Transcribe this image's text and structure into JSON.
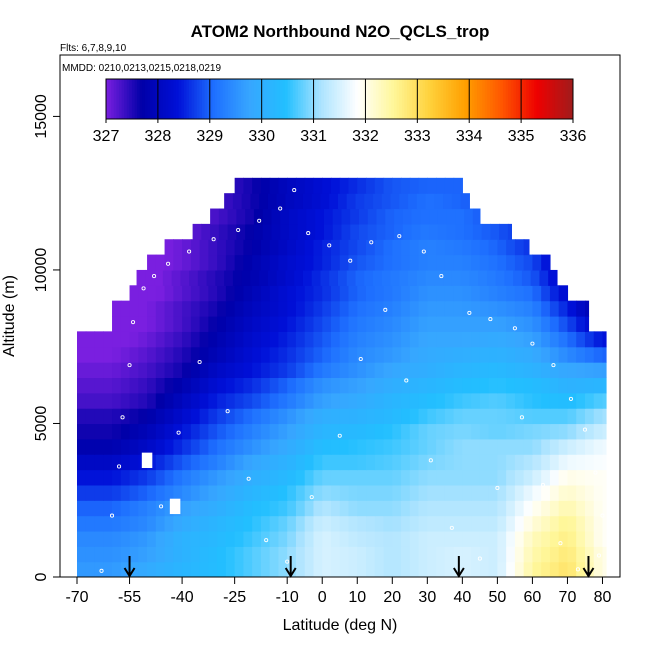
{
  "chart_data": {
    "type": "heatmap",
    "title": "ATOM2 Northbound N2O_QCLS_trop",
    "flights_label": "Flts: 6,7,8,9,10",
    "dates_label": "MMDD: 0210,0213,0215,0218,0219",
    "xlabel": "Latitude (deg N)",
    "ylabel": "Altitude (m)",
    "xlim": [
      -70,
      85
    ],
    "ylim": [
      0,
      17000
    ],
    "x_ticks": [
      -70,
      -55,
      -40,
      -25,
      -10,
      0,
      10,
      20,
      30,
      40,
      50,
      60,
      70,
      80
    ],
    "y_ticks": [
      0,
      5000,
      10000,
      15000
    ],
    "colorbar": {
      "min": 327,
      "max": 336,
      "ticks": [
        "327",
        "328",
        "329",
        "330",
        "331",
        "332",
        "333",
        "334",
        "335",
        "336"
      ],
      "colors": [
        "#7a1fe0",
        "#0000a8",
        "#0010d8",
        "#1e6fff",
        "#37a6ff",
        "#22bfff",
        "#aee4ff",
        "#ffffff",
        "#fff79a",
        "#ffd23c",
        "#ff9f00",
        "#ff5800",
        "#ee0000",
        "#a01c1c"
      ]
    },
    "arrows_lat": [
      -55,
      -9,
      39,
      76
    ],
    "field_altitudes": [
      0,
      500,
      1000,
      1500,
      2000,
      2500,
      3000,
      3500,
      4000,
      4500,
      5000,
      5500,
      6000,
      6500,
      7000,
      7500,
      8000,
      8500,
      9000,
      9500,
      10000,
      10500,
      11000,
      11500,
      12000,
      12500
    ],
    "field_latitudes": [
      -60,
      -50,
      -40,
      -30,
      -20,
      -10,
      0,
      10,
      20,
      30,
      40,
      50,
      60,
      70,
      80
    ],
    "field_values": [
      [
        329.6,
        329.9,
        330.2,
        330.4,
        330.7,
        331.0,
        331.5,
        331.4,
        331.2,
        331.4,
        331.5,
        331.4,
        332.5,
        332.9,
        332.0
      ],
      [
        329.5,
        329.7,
        330.1,
        330.4,
        330.7,
        331.0,
        331.5,
        331.4,
        331.2,
        331.4,
        331.5,
        331.4,
        332.4,
        332.8,
        332.0
      ],
      [
        329.4,
        329.6,
        330.1,
        330.3,
        330.6,
        330.9,
        331.5,
        331.3,
        331.2,
        331.4,
        331.4,
        331.4,
        332.3,
        332.7,
        331.9
      ],
      [
        329.2,
        329.4,
        329.9,
        330.2,
        330.5,
        330.8,
        331.4,
        331.2,
        331.1,
        331.3,
        331.3,
        331.3,
        332.1,
        332.6,
        331.9
      ],
      [
        329.0,
        329.3,
        329.7,
        330.0,
        330.4,
        330.6,
        331.2,
        331.0,
        331.0,
        331.2,
        331.2,
        331.2,
        331.9,
        332.4,
        331.9
      ],
      [
        328.7,
        329.0,
        329.4,
        329.8,
        330.2,
        330.5,
        331.0,
        330.9,
        330.9,
        331.1,
        331.1,
        331.1,
        331.7,
        332.2,
        331.9
      ],
      [
        328.4,
        328.7,
        329.2,
        329.6,
        330.0,
        330.3,
        330.8,
        330.8,
        330.8,
        331.0,
        331.0,
        331.0,
        331.4,
        332.0,
        331.9
      ],
      [
        328.1,
        328.4,
        328.9,
        329.3,
        329.8,
        330.1,
        330.6,
        330.6,
        330.7,
        330.9,
        331.0,
        331.0,
        331.2,
        331.7,
        331.8
      ],
      [
        327.8,
        328.1,
        328.6,
        329.1,
        329.5,
        329.9,
        330.4,
        330.5,
        330.6,
        330.8,
        331.0,
        331.0,
        331.0,
        331.4,
        331.7
      ],
      [
        327.6,
        327.9,
        328.4,
        328.9,
        329.3,
        329.7,
        330.2,
        330.3,
        330.5,
        330.8,
        330.9,
        330.8,
        330.9,
        331.0,
        331.4
      ],
      [
        327.5,
        327.7,
        328.2,
        328.7,
        329.1,
        329.5,
        330.0,
        330.1,
        330.3,
        330.6,
        330.8,
        330.8,
        330.7,
        330.7,
        331.1
      ],
      [
        327.3,
        327.5,
        328.0,
        328.5,
        328.8,
        329.2,
        329.7,
        329.9,
        330.2,
        330.4,
        330.6,
        330.7,
        330.5,
        330.4,
        330.7
      ],
      [
        327.2,
        327.4,
        327.8,
        328.3,
        328.6,
        329.0,
        329.5,
        329.7,
        330.0,
        330.2,
        330.4,
        330.5,
        330.4,
        330.1,
        330.2
      ],
      [
        327.1,
        327.3,
        327.6,
        328.1,
        328.4,
        328.7,
        329.2,
        329.5,
        329.8,
        330.0,
        330.2,
        330.3,
        330.1,
        329.8,
        329.7
      ],
      [
        327.0,
        327.2,
        327.5,
        327.9,
        328.3,
        328.6,
        329.0,
        329.4,
        329.6,
        329.9,
        330.0,
        330.1,
        329.9,
        329.4,
        329.0
      ],
      [
        326.9,
        327.1,
        327.4,
        327.8,
        328.2,
        328.5,
        328.9,
        329.3,
        329.5,
        329.8,
        329.8,
        329.9,
        329.7,
        329.1,
        328.4
      ],
      [
        326.9,
        327.0,
        327.3,
        327.7,
        328.1,
        328.4,
        328.8,
        329.2,
        329.4,
        329.7,
        329.7,
        329.7,
        329.5,
        328.8,
        327.9
      ],
      [
        326.8,
        327.0,
        327.3,
        327.6,
        328.0,
        328.3,
        328.7,
        329.1,
        329.3,
        329.6,
        329.6,
        329.5,
        329.3,
        328.5,
        327.5
      ],
      [
        326.8,
        326.9,
        327.2,
        327.5,
        327.9,
        328.3,
        328.6,
        329.0,
        329.2,
        329.5,
        329.5,
        329.3,
        329.1,
        328.2,
        327.2
      ],
      [
        326.8,
        326.9,
        327.2,
        327.5,
        327.8,
        328.2,
        328.6,
        329.0,
        329.2,
        329.4,
        329.4,
        329.2,
        328.9,
        328.0,
        327.0
      ],
      [
        326.8,
        326.9,
        327.1,
        327.4,
        327.8,
        328.2,
        328.5,
        328.9,
        329.1,
        329.3,
        329.3,
        329.1,
        328.8,
        327.8,
        327.0
      ],
      [
        326.8,
        326.9,
        327.1,
        327.4,
        327.7,
        328.1,
        328.5,
        328.8,
        329.1,
        329.3,
        329.2,
        329.0,
        328.6,
        327.7,
        327.0
      ],
      [
        326.8,
        326.8,
        327.1,
        327.4,
        327.7,
        328.1,
        328.4,
        328.8,
        329.0,
        329.2,
        329.1,
        328.9,
        328.5,
        327.6,
        327.0
      ],
      [
        326.8,
        326.8,
        327.1,
        327.3,
        327.6,
        328.1,
        328.4,
        328.7,
        329.0,
        329.1,
        329.1,
        328.8,
        328.4,
        327.5,
        327.0
      ],
      [
        326.8,
        326.8,
        327.0,
        327.3,
        327.6,
        328.0,
        328.3,
        328.7,
        328.9,
        329.1,
        329.0,
        328.7,
        328.3,
        327.4,
        327.0
      ],
      [
        326.8,
        326.8,
        327.0,
        327.3,
        327.6,
        328.0,
        328.3,
        328.6,
        328.9,
        329.0,
        329.0,
        328.6,
        328.2,
        327.3,
        327.0
      ]
    ],
    "coverage_by_altitude": [
      [
        -70,
        81
      ],
      [
        -70,
        81
      ],
      [
        -70,
        81
      ],
      [
        -70,
        81
      ],
      [
        -70,
        81
      ],
      [
        -70,
        81
      ],
      [
        -70,
        81
      ],
      [
        -70,
        81
      ],
      [
        -70,
        81
      ],
      [
        -70,
        81
      ],
      [
        -70,
        81
      ],
      [
        -70,
        81
      ],
      [
        -70,
        81
      ],
      [
        -70,
        81
      ],
      [
        -70,
        81
      ],
      [
        -70,
        81
      ],
      [
        -60,
        76
      ],
      [
        -60,
        76
      ],
      [
        -55,
        70
      ],
      [
        -53,
        67
      ],
      [
        -50,
        65
      ],
      [
        -45,
        59
      ],
      [
        -37,
        54
      ],
      [
        -32,
        45
      ],
      [
        -28,
        42
      ],
      [
        -25,
        40
      ]
    ],
    "flight_track_samples": [
      {
        "lat": -63,
        "alt": 200
      },
      {
        "lat": -60,
        "alt": 2000
      },
      {
        "lat": -58,
        "alt": 3600
      },
      {
        "lat": -57,
        "alt": 5200
      },
      {
        "lat": -55,
        "alt": 6900
      },
      {
        "lat": -54,
        "alt": 8300
      },
      {
        "lat": -51,
        "alt": 9400
      },
      {
        "lat": -48,
        "alt": 9800
      },
      {
        "lat": -44,
        "alt": 10200
      },
      {
        "lat": -38,
        "alt": 10600
      },
      {
        "lat": -31,
        "alt": 11000
      },
      {
        "lat": -24,
        "alt": 11300
      },
      {
        "lat": -18,
        "alt": 11600
      },
      {
        "lat": -12,
        "alt": 12000
      },
      {
        "lat": -8,
        "alt": 12600
      },
      {
        "lat": -4,
        "alt": 11200
      },
      {
        "lat": 2,
        "alt": 10800
      },
      {
        "lat": 8,
        "alt": 10300
      },
      {
        "lat": 14,
        "alt": 10900
      },
      {
        "lat": 22,
        "alt": 11100
      },
      {
        "lat": 29,
        "alt": 10600
      },
      {
        "lat": 34,
        "alt": 9800
      },
      {
        "lat": 42,
        "alt": 8600
      },
      {
        "lat": 48,
        "alt": 8400
      },
      {
        "lat": 55,
        "alt": 8100
      },
      {
        "lat": 60,
        "alt": 7600
      },
      {
        "lat": 66,
        "alt": 6900
      },
      {
        "lat": 71,
        "alt": 5800
      },
      {
        "lat": 75,
        "alt": 4800
      },
      {
        "lat": 78,
        "alt": 3400
      },
      {
        "lat": 80,
        "alt": 2000
      },
      {
        "lat": 79,
        "alt": 700
      },
      {
        "lat": -46,
        "alt": 2300
      },
      {
        "lat": -41,
        "alt": 4700
      },
      {
        "lat": -35,
        "alt": 7000
      },
      {
        "lat": -27,
        "alt": 5400
      },
      {
        "lat": -21,
        "alt": 3200
      },
      {
        "lat": -16,
        "alt": 1200
      },
      {
        "lat": -10,
        "alt": 500
      },
      {
        "lat": -3,
        "alt": 2600
      },
      {
        "lat": 5,
        "alt": 4600
      },
      {
        "lat": 11,
        "alt": 7100
      },
      {
        "lat": 18,
        "alt": 8700
      },
      {
        "lat": 24,
        "alt": 6400
      },
      {
        "lat": 31,
        "alt": 3800
      },
      {
        "lat": 37,
        "alt": 1600
      },
      {
        "lat": 45,
        "alt": 600
      },
      {
        "lat": 50,
        "alt": 2900
      },
      {
        "lat": 57,
        "alt": 5200
      },
      {
        "lat": 63,
        "alt": 3000
      },
      {
        "lat": 68,
        "alt": 1100
      },
      {
        "lat": 73,
        "alt": 250
      }
    ],
    "white_gaps": [
      {
        "lat": -50,
        "alt": 3800
      },
      {
        "lat": -42,
        "alt": 2300
      }
    ]
  }
}
